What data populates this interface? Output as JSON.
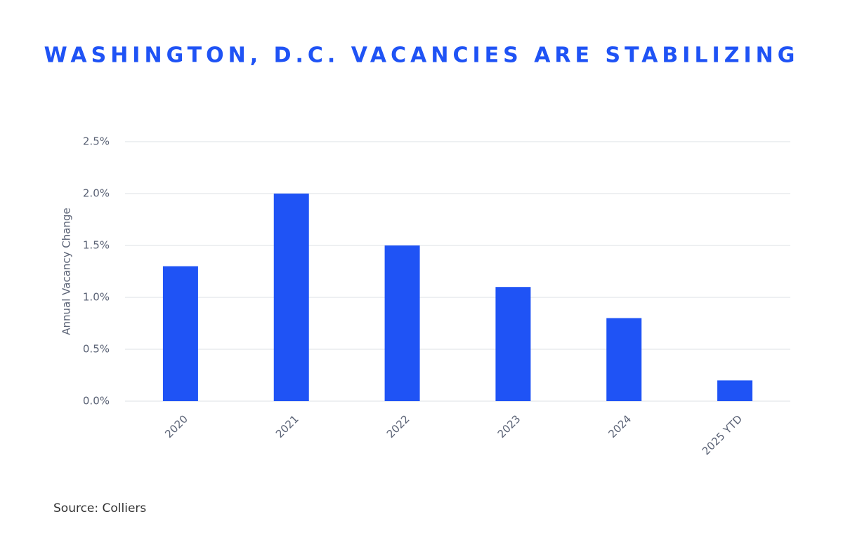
{
  "chart_data": {
    "type": "bar",
    "title": "WASHINGTON, D.C. VACANCIES ARE STABILIZING",
    "y_label": "Annual Vacancy Change",
    "categories": [
      "2020",
      "2021",
      "2022",
      "2023",
      "2024",
      "2025 YTD"
    ],
    "values": [
      1.3,
      2.0,
      1.5,
      1.1,
      0.8,
      0.2
    ],
    "color": "#1f53f5",
    "ylim": [
      0,
      2.5
    ],
    "yticks": [
      {
        "value": 0,
        "label": "0.0%"
      },
      {
        "value": 0.5,
        "label": "0.5%"
      },
      {
        "value": 1.0,
        "label": "1.0%"
      },
      {
        "value": 1.5,
        "label": "1.5%"
      },
      {
        "value": 2.0,
        "label": "2.0%"
      },
      {
        "value": 2.5,
        "label": "2.5%"
      }
    ],
    "grid": true,
    "source": "Source: Colliers"
  }
}
